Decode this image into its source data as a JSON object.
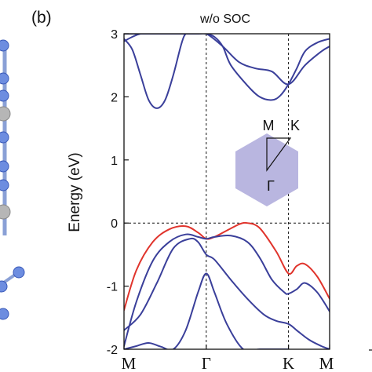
{
  "panel_label": "(b)",
  "chart_data": {
    "type": "line",
    "title": "w/o SOC",
    "ylabel": "Energy (eV)",
    "xlabel": "",
    "x_ticks": [
      "M",
      "Γ",
      "K",
      "M"
    ],
    "x_tick_positions": [
      0,
      1,
      2,
      2.5
    ],
    "ylim": [
      -2,
      3
    ],
    "y_ticks": [
      -2,
      -1,
      0,
      1,
      2,
      3
    ],
    "fermi_level": 0,
    "grid": false,
    "colors": {
      "band": "#3a3f9a",
      "highlight_band": "#e0342c",
      "brillouin_zone": "#b9b6e0"
    },
    "series": [
      {
        "color": "#e0342c",
        "x": [
          0,
          0.15,
          0.35,
          0.55,
          0.75,
          0.9,
          1.0,
          1.1,
          1.25,
          1.4,
          1.5,
          1.65,
          1.85,
          2.0,
          2.1,
          2.2,
          2.35,
          2.5
        ],
        "y": [
          -1.38,
          -0.75,
          -0.3,
          -0.1,
          -0.05,
          -0.15,
          -0.25,
          -0.22,
          -0.12,
          -0.02,
          0.0,
          -0.08,
          -0.45,
          -0.8,
          -0.68,
          -0.65,
          -0.85,
          -1.2
        ]
      },
      {
        "color": "#3a3f9a",
        "x": [
          0,
          0.15,
          0.35,
          0.55,
          0.75,
          0.9,
          1.0,
          1.1,
          1.3,
          1.5,
          1.65,
          1.8,
          1.95,
          2.0,
          2.1,
          2.2,
          2.35,
          2.5
        ],
        "y": [
          -1.95,
          -1.25,
          -0.6,
          -0.3,
          -0.18,
          -0.22,
          -0.25,
          -0.22,
          -0.2,
          -0.3,
          -0.55,
          -0.9,
          -1.1,
          -1.12,
          -1.05,
          -0.95,
          -1.1,
          -1.4
        ]
      },
      {
        "color": "#3a3f9a",
        "x": [
          0,
          0.2,
          0.4,
          0.6,
          0.8,
          0.9,
          1.0,
          1.1,
          1.3,
          1.5,
          1.7,
          1.85,
          2.0,
          2.1,
          2.25,
          2.4,
          2.5
        ],
        "y": [
          -1.7,
          -1.45,
          -0.95,
          -0.4,
          -0.25,
          -0.3,
          -0.5,
          -0.58,
          -0.9,
          -1.2,
          -1.45,
          -1.55,
          -1.6,
          -1.7,
          -1.85,
          -1.95,
          -2.0
        ]
      },
      {
        "color": "#3a3f9a",
        "x": [
          0,
          0.15,
          0.3,
          0.45,
          0.6,
          0.75,
          0.9,
          1.0,
          1.1,
          1.25,
          1.45,
          1.65,
          1.85,
          2.0
        ],
        "y": [
          -2.0,
          -1.95,
          -1.9,
          -1.96,
          -2.0,
          -1.7,
          -1.1,
          -0.8,
          -1.1,
          -1.6,
          -2.0,
          -2.0,
          -2.0,
          -2.0
        ]
      },
      {
        "color": "#3a3f9a",
        "x": [
          0,
          0.1,
          0.2,
          0.3,
          0.4,
          0.5,
          0.6,
          0.7,
          0.75,
          0.8
        ],
        "y": [
          2.92,
          2.75,
          2.35,
          1.95,
          1.82,
          1.95,
          2.35,
          2.85,
          3.0,
          3.0
        ]
      },
      {
        "color": "#3a3f9a",
        "x": [
          0,
          0.1,
          0.2,
          0.3,
          0.4,
          0.55,
          0.7,
          0.85,
          1.0,
          1.2,
          1.4,
          1.6,
          1.8,
          2.0,
          2.2,
          2.4,
          2.5
        ],
        "y": [
          3.0,
          3.0,
          3.0,
          3.0,
          3.0,
          3.0,
          3.0,
          3.0,
          3.0,
          2.8,
          2.55,
          2.45,
          2.4,
          2.2,
          2.5,
          2.72,
          2.8
        ]
      },
      {
        "color": "#3a3f9a",
        "x": [
          0,
          0.1,
          0.2,
          0.3,
          0.4,
          0.5,
          0.6,
          0.7,
          0.8,
          0.9,
          1.0,
          1.1,
          1.2,
          1.3,
          1.5,
          1.65,
          1.8,
          1.9,
          2.0,
          2.1,
          2.2,
          2.35,
          2.5
        ],
        "y": [
          2.88,
          2.95,
          3.0,
          3.0,
          3.0,
          3.0,
          3.0,
          3.0,
          3.0,
          3.0,
          3.0,
          2.95,
          2.8,
          2.5,
          2.18,
          2.0,
          1.95,
          2.02,
          2.2,
          2.45,
          2.72,
          2.86,
          2.92
        ]
      }
    ],
    "inset": {
      "type": "brillouin-zone",
      "labels": {
        "top_left": "M",
        "top_right": "K",
        "center": "Γ"
      }
    }
  }
}
